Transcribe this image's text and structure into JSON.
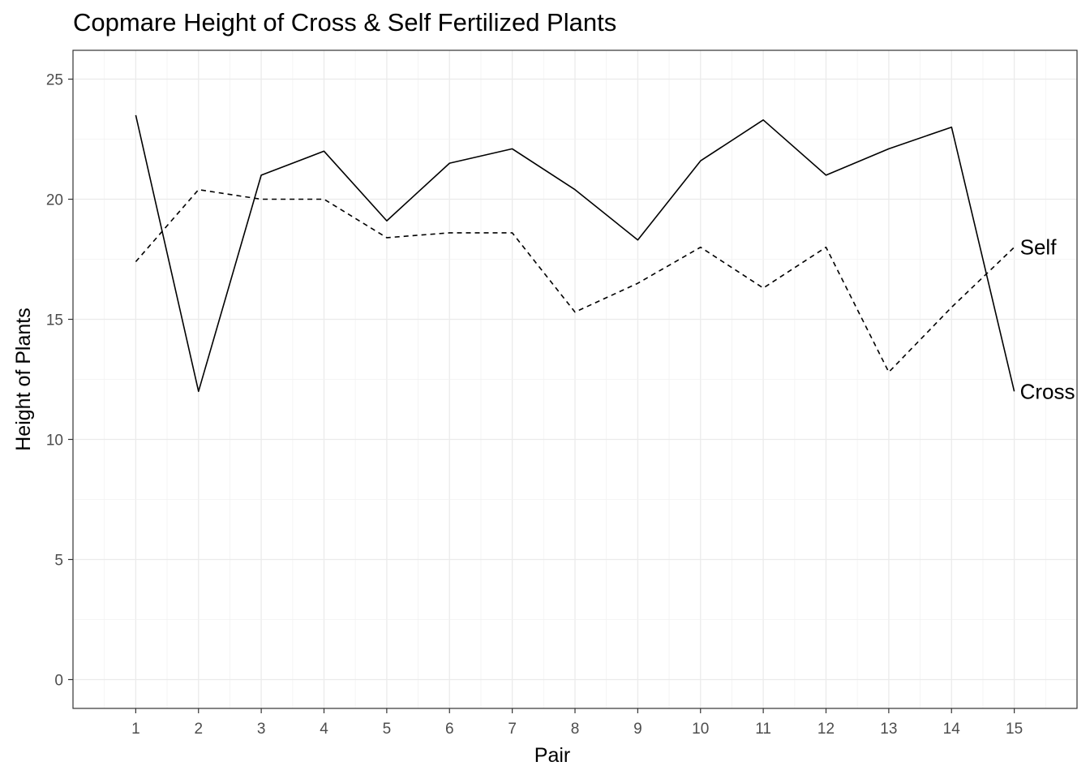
{
  "chart_data": {
    "type": "line",
    "title": "Copmare Height of Cross & Self Fertilized Plants",
    "xlabel": "Pair",
    "ylabel": "Height of Plants",
    "x": [
      1,
      2,
      3,
      4,
      5,
      6,
      7,
      8,
      9,
      10,
      11,
      12,
      13,
      14,
      15
    ],
    "xlim": [
      0,
      16
    ],
    "ylim": [
      -1.2,
      26.2
    ],
    "yticks": [
      0,
      5,
      10,
      15,
      20,
      25
    ],
    "grid": true,
    "legend": "direct-labels",
    "series": [
      {
        "name": "Cross",
        "line_style": "solid",
        "color": "#000000",
        "values": [
          23.5,
          12.0,
          21.0,
          22.0,
          19.1,
          21.5,
          22.1,
          20.4,
          18.3,
          21.6,
          23.3,
          21.0,
          22.1,
          23.0,
          12.0
        ]
      },
      {
        "name": "Self",
        "line_style": "dashed",
        "color": "#000000",
        "values": [
          17.4,
          20.4,
          20.0,
          20.0,
          18.4,
          18.6,
          18.6,
          15.3,
          16.5,
          18.0,
          16.3,
          18.0,
          12.8,
          15.5,
          18.0
        ]
      }
    ]
  }
}
